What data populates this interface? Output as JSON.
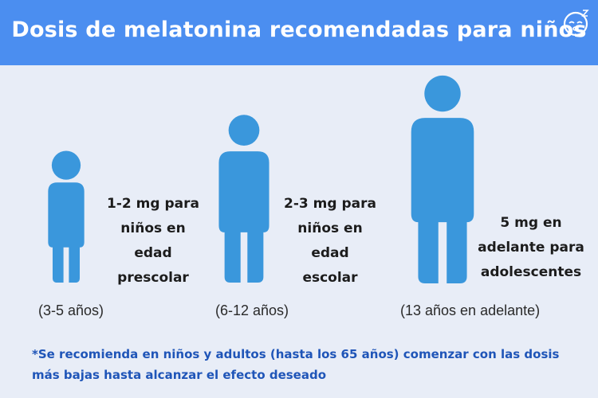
{
  "header": {
    "title": "Dosis de melatonina recomendadas para niños",
    "logo_icon": "sleeping-face-icon"
  },
  "groups": [
    {
      "dose": "1-2 mg para niños en edad prescolar",
      "age": "(3-5 años)"
    },
    {
      "dose": "2-3 mg para niños en edad escolar",
      "age": "(6-12 años)"
    },
    {
      "dose": "5 mg en adelante para adolescentes",
      "age": "(13 años en adelante)"
    }
  ],
  "footnote": "*Se recomienda en niños y adultos (hasta los 65 años) comenzar con las dosis más bajas hasta alcanzar el efecto deseado",
  "colors": {
    "header": "#4b8ef0",
    "background": "#e8edf7",
    "figure": "#3a97dc",
    "footnote": "#1f55b8"
  }
}
